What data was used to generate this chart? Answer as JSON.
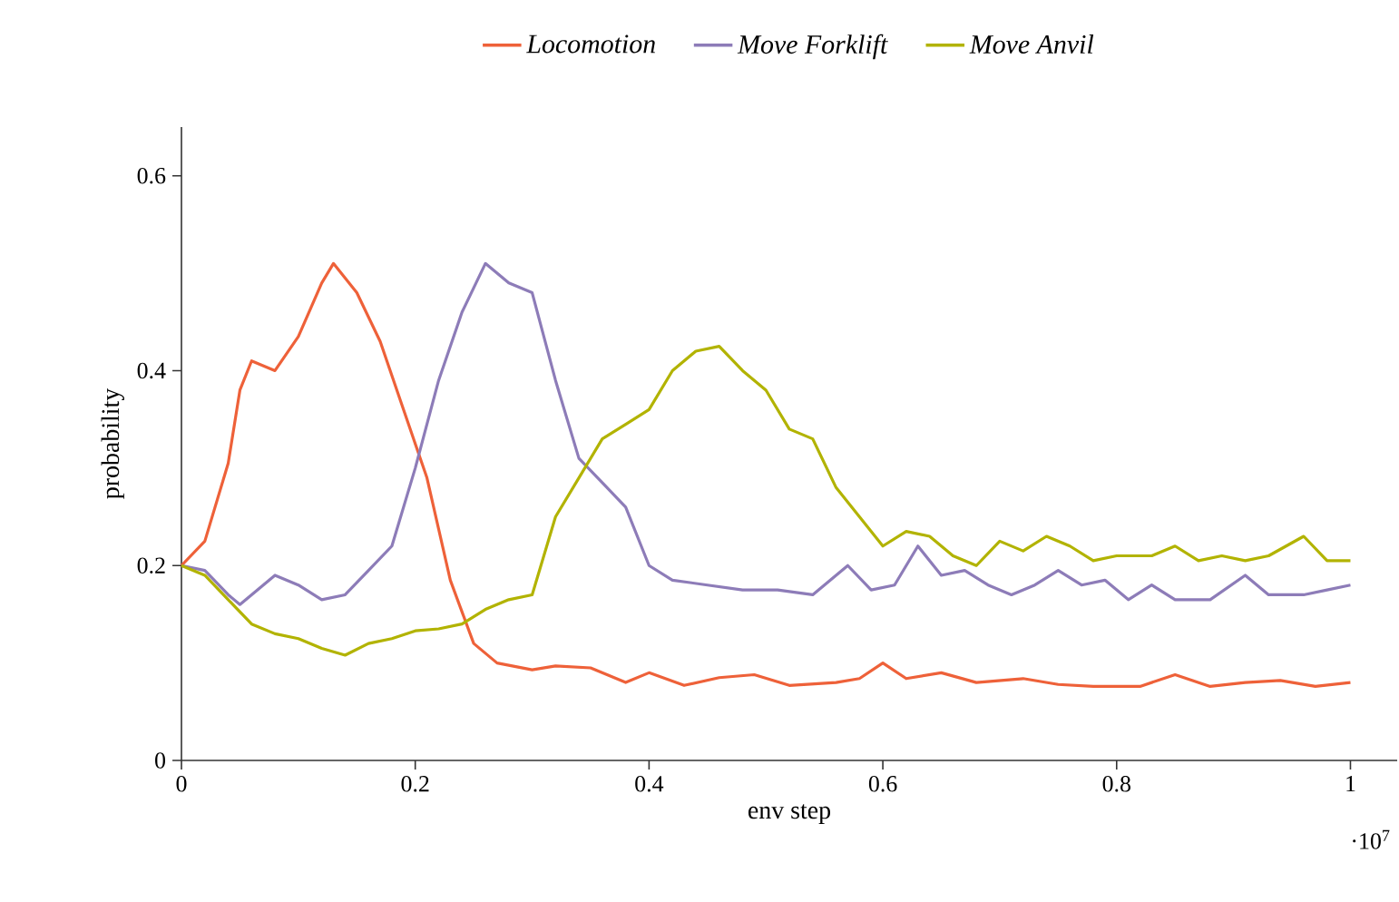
{
  "chart_data": {
    "type": "line",
    "xlabel": "env step",
    "ylabel": "probability",
    "xlim": [
      0,
      1.04
    ],
    "ylim": [
      0,
      0.65
    ],
    "xticks": [
      0,
      0.2,
      0.4,
      0.6,
      0.8,
      1
    ],
    "yticks": [
      0,
      0.2,
      0.4,
      0.6
    ],
    "legend": "top",
    "grid": false,
    "marker": "none",
    "line_style": "solid",
    "annotations": [
      "·10$^{7}$"
    ],
    "series": [
      {
        "name": "*Locomotion*",
        "color": "#ee6139",
        "x": [
          0,
          0.02,
          0.04,
          0.05,
          0.06,
          0.08,
          0.1,
          0.12,
          0.13,
          0.15,
          0.17,
          0.19,
          0.21,
          0.23,
          0.25,
          0.27,
          0.3,
          0.32,
          0.35,
          0.38,
          0.4,
          0.43,
          0.46,
          0.49,
          0.52,
          0.56,
          0.58,
          0.6,
          0.62,
          0.65,
          0.68,
          0.72,
          0.75,
          0.78,
          0.82,
          0.85,
          0.88,
          0.91,
          0.94,
          0.97,
          1.0
        ],
        "values": [
          0.2,
          0.225,
          0.305,
          0.38,
          0.41,
          0.4,
          0.435,
          0.49,
          0.51,
          0.48,
          0.43,
          0.36,
          0.29,
          0.185,
          0.12,
          0.1,
          0.093,
          0.097,
          0.095,
          0.08,
          0.09,
          0.077,
          0.085,
          0.088,
          0.077,
          0.08,
          0.084,
          0.1,
          0.084,
          0.09,
          0.08,
          0.084,
          0.078,
          0.076,
          0.076,
          0.088,
          0.076,
          0.08,
          0.082,
          0.076,
          0.08
        ]
      },
      {
        "name": "*Move Forklift*",
        "color": "#8d7cb8",
        "x": [
          0,
          0.02,
          0.04,
          0.05,
          0.08,
          0.1,
          0.12,
          0.14,
          0.16,
          0.18,
          0.2,
          0.22,
          0.24,
          0.26,
          0.28,
          0.3,
          0.32,
          0.34,
          0.36,
          0.38,
          0.4,
          0.42,
          0.45,
          0.48,
          0.51,
          0.54,
          0.57,
          0.59,
          0.61,
          0.63,
          0.65,
          0.67,
          0.69,
          0.71,
          0.73,
          0.75,
          0.77,
          0.79,
          0.81,
          0.83,
          0.85,
          0.88,
          0.91,
          0.93,
          0.96,
          0.98,
          1.0
        ],
        "values": [
          0.2,
          0.195,
          0.17,
          0.16,
          0.19,
          0.18,
          0.165,
          0.17,
          0.195,
          0.22,
          0.3,
          0.39,
          0.46,
          0.51,
          0.49,
          0.48,
          0.39,
          0.31,
          0.285,
          0.26,
          0.2,
          0.185,
          0.18,
          0.175,
          0.175,
          0.17,
          0.2,
          0.175,
          0.18,
          0.22,
          0.19,
          0.195,
          0.18,
          0.17,
          0.18,
          0.195,
          0.18,
          0.185,
          0.165,
          0.18,
          0.165,
          0.165,
          0.19,
          0.17,
          0.17,
          0.175,
          0.18
        ]
      },
      {
        "name": "*Move Anvil*",
        "color": "#b2b300",
        "x": [
          0,
          0.02,
          0.04,
          0.06,
          0.08,
          0.1,
          0.12,
          0.14,
          0.16,
          0.18,
          0.2,
          0.22,
          0.24,
          0.26,
          0.28,
          0.3,
          0.32,
          0.34,
          0.36,
          0.38,
          0.4,
          0.42,
          0.44,
          0.46,
          0.48,
          0.5,
          0.52,
          0.54,
          0.56,
          0.58,
          0.6,
          0.62,
          0.64,
          0.66,
          0.68,
          0.7,
          0.72,
          0.74,
          0.76,
          0.78,
          0.8,
          0.83,
          0.85,
          0.87,
          0.89,
          0.91,
          0.93,
          0.96,
          0.98,
          1.0
        ],
        "values": [
          0.2,
          0.19,
          0.165,
          0.14,
          0.13,
          0.125,
          0.115,
          0.108,
          0.12,
          0.125,
          0.133,
          0.135,
          0.14,
          0.155,
          0.165,
          0.17,
          0.25,
          0.29,
          0.33,
          0.345,
          0.36,
          0.4,
          0.42,
          0.425,
          0.4,
          0.38,
          0.34,
          0.33,
          0.28,
          0.25,
          0.22,
          0.235,
          0.23,
          0.21,
          0.2,
          0.225,
          0.215,
          0.23,
          0.22,
          0.205,
          0.21,
          0.21,
          0.22,
          0.205,
          0.21,
          0.205,
          0.21,
          0.23,
          0.205,
          0.205
        ]
      }
    ]
  }
}
